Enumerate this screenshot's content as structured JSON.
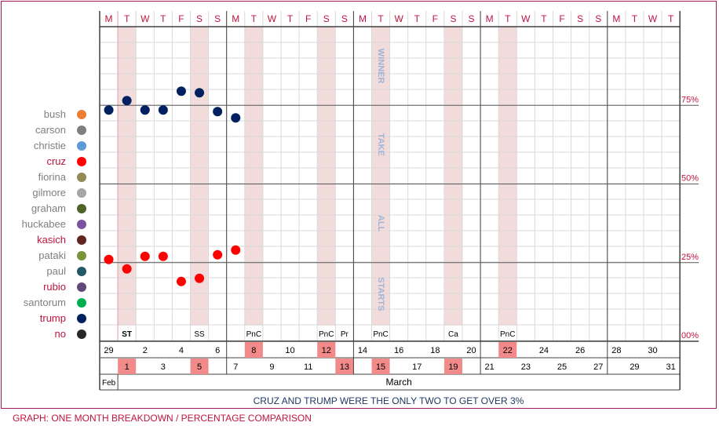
{
  "chart_data": {
    "type": "scatter",
    "x_axis": {
      "weekdays": [
        "M",
        "T",
        "W",
        "T",
        "F",
        "S",
        "S",
        "M",
        "T",
        "W",
        "T",
        "F",
        "S",
        "S",
        "M",
        "T",
        "W",
        "T",
        "F",
        "S",
        "S",
        "M",
        "T",
        "W",
        "T",
        "F",
        "S",
        "S",
        "M",
        "T",
        "W",
        "T"
      ],
      "dates": [
        "29",
        "1",
        "2",
        "3",
        "4",
        "5",
        "6",
        "7",
        "8",
        "9",
        "10",
        "11",
        "12",
        "13",
        "14",
        "15",
        "16",
        "17",
        "18",
        "19",
        "20",
        "21",
        "22",
        "23",
        "24",
        "25",
        "26",
        "27",
        "28",
        "29",
        "30",
        "31"
      ],
      "highlighted_dates": [
        "1",
        "5",
        "8",
        "12",
        "13",
        "15",
        "19",
        "22"
      ],
      "month_labels": [
        "Feb",
        "March"
      ]
    },
    "y_axis": {
      "range": [
        0,
        100
      ],
      "tick_labels": [
        "75%",
        "50%",
        "25%",
        "00%"
      ],
      "tick_values": [
        75,
        50,
        25,
        0
      ]
    },
    "event_labels": [
      {
        "date_index": 1,
        "label": "ST"
      },
      {
        "date_index": 5,
        "label": "SS"
      },
      {
        "date_index": 8,
        "label": "PnC"
      },
      {
        "date_index": 12,
        "label": "PnC"
      },
      {
        "date_index": 13,
        "label": "Pr"
      },
      {
        "date_index": 15,
        "label": "PnC"
      },
      {
        "date_index": 19,
        "label": "Ca"
      },
      {
        "date_index": 22,
        "label": "PnC"
      }
    ],
    "shaded_date_indices": [
      1,
      5,
      8,
      12,
      15,
      19,
      22
    ],
    "zone_labels": [
      "WINNER",
      "TAKE",
      "ALL",
      "STARTS"
    ],
    "series": [
      {
        "name": "bush",
        "color": "#ed7d31",
        "points": []
      },
      {
        "name": "carson",
        "color": "#7f7f7f",
        "points": []
      },
      {
        "name": "christie",
        "color": "#5b9bd5",
        "points": []
      },
      {
        "name": "cruz",
        "color": "#ff0000",
        "points": [
          [
            0,
            26
          ],
          [
            1,
            23
          ],
          [
            2,
            27
          ],
          [
            3,
            27
          ],
          [
            4,
            19
          ],
          [
            5,
            20
          ],
          [
            6,
            27.5
          ],
          [
            7,
            29
          ]
        ]
      },
      {
        "name": "fiorina",
        "color": "#948a54",
        "points": []
      },
      {
        "name": "gilmore",
        "color": "#a6a6a6",
        "points": []
      },
      {
        "name": "graham",
        "color": "#4f6228",
        "points": []
      },
      {
        "name": "huckabee",
        "color": "#7952a0",
        "points": []
      },
      {
        "name": "kasich",
        "color": "#632523",
        "points": []
      },
      {
        "name": "pataki",
        "color": "#77933c",
        "points": []
      },
      {
        "name": "paul",
        "color": "#215968",
        "points": []
      },
      {
        "name": "rubio",
        "color": "#604a7b",
        "points": []
      },
      {
        "name": "santorum",
        "color": "#00b050",
        "points": []
      },
      {
        "name": "trump",
        "color": "#002060",
        "points": [
          [
            0,
            73.5
          ],
          [
            1,
            76.5
          ],
          [
            2,
            73.5
          ],
          [
            3,
            73.5
          ],
          [
            4,
            79.5
          ],
          [
            5,
            79
          ],
          [
            6,
            73
          ],
          [
            7,
            71
          ]
        ]
      },
      {
        "name": "no",
        "color": "#262626",
        "points": []
      }
    ]
  },
  "legend": [
    {
      "name": "bush",
      "text_color": "#7f7f7f",
      "dot_color": "#ed7d31"
    },
    {
      "name": "carson",
      "text_color": "#7f7f7f",
      "dot_color": "#7f7f7f"
    },
    {
      "name": "christie",
      "text_color": "#7f7f7f",
      "dot_color": "#5b9bd5"
    },
    {
      "name": "cruz",
      "text_color": "#c0143c",
      "dot_color": "#ff0000"
    },
    {
      "name": "fiorina",
      "text_color": "#7f7f7f",
      "dot_color": "#948a54"
    },
    {
      "name": "gilmore",
      "text_color": "#7f7f7f",
      "dot_color": "#a6a6a6"
    },
    {
      "name": "graham",
      "text_color": "#7f7f7f",
      "dot_color": "#4f6228"
    },
    {
      "name": "huckabee",
      "text_color": "#7f7f7f",
      "dot_color": "#7952a0"
    },
    {
      "name": "kasich",
      "text_color": "#c0143c",
      "dot_color": "#632523"
    },
    {
      "name": "pataki",
      "text_color": "#7f7f7f",
      "dot_color": "#77933c"
    },
    {
      "name": "paul",
      "text_color": "#7f7f7f",
      "dot_color": "#215968"
    },
    {
      "name": "rubio",
      "text_color": "#c0143c",
      "dot_color": "#604a7b"
    },
    {
      "name": "santorum",
      "text_color": "#7f7f7f",
      "dot_color": "#00b050"
    },
    {
      "name": "trump",
      "text_color": "#c0143c",
      "dot_color": "#002060"
    },
    {
      "name": "no",
      "text_color": "#c0143c",
      "dot_color": "#262626"
    }
  ],
  "footer_caption": "CRUZ AND TRUMP WERE THE ONLY TWO TO GET OVER 3%",
  "graph_caption": "GRAPH: ONE MONTH BREAKDOWN / PERCENTAGE COMPARISON"
}
